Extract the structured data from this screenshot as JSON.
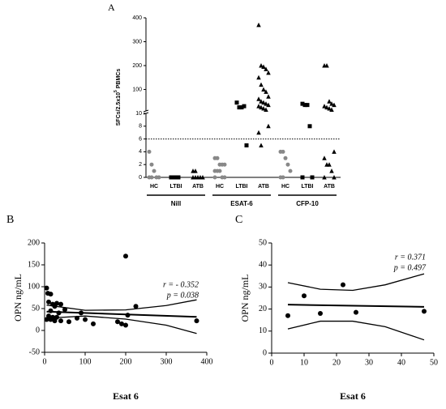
{
  "chart_data": [
    {
      "type": "dot",
      "panel": "A",
      "ylabel": "SFCs/2.5x10",
      "ylabel_sup": "5",
      "ylabel_end": " PBMCs",
      "ysegments": [
        [
          0,
          10
        ],
        [
          10,
          400
        ]
      ],
      "yticks": [
        0,
        2,
        4,
        6,
        8,
        10,
        100,
        200,
        300,
        400
      ],
      "refline": 6,
      "groups": [
        {
          "name": "Nill",
          "series": [
            {
              "name": "HC",
              "color": "#888888",
              "marker": "circle",
              "values": [
                4,
                2,
                1,
                0,
                0,
                0,
                0
              ]
            },
            {
              "name": "LTBI",
              "color": "#000000",
              "marker": "square",
              "values": [
                0,
                0,
                0,
                0
              ]
            },
            {
              "name": "ATB",
              "color": "#000000",
              "marker": "triangle",
              "values": [
                1,
                1,
                0,
                0,
                0,
                0,
                0
              ]
            }
          ]
        },
        {
          "name": "ESAT-6",
          "series": [
            {
              "name": "HC",
              "color": "#888888",
              "marker": "circle",
              "values": [
                3,
                3,
                2,
                2,
                2,
                1,
                1,
                1,
                0,
                0,
                0
              ]
            },
            {
              "name": "LTBI",
              "color": "#000000",
              "marker": "square",
              "values": [
                45,
                25,
                25,
                30,
                5
              ]
            },
            {
              "name": "ATB",
              "color": "#000000",
              "marker": "triangle",
              "values": [
                370,
                200,
                195,
                185,
                170,
                150,
                120,
                100,
                90,
                70,
                60,
                50,
                45,
                40,
                35,
                30,
                25,
                20,
                15,
                8,
                7,
                5
              ]
            }
          ]
        },
        {
          "name": "CFP-10",
          "series": [
            {
              "name": "HC",
              "color": "#888888",
              "marker": "circle",
              "values": [
                4,
                4,
                3,
                2,
                1,
                0,
                0
              ]
            },
            {
              "name": "LTBI",
              "color": "#000000",
              "marker": "square",
              "values": [
                40,
                35,
                35,
                8,
                0,
                0
              ]
            },
            {
              "name": "ATB",
              "color": "#000000",
              "marker": "triangle",
              "values": [
                200,
                200,
                50,
                40,
                35,
                30,
                25,
                20,
                15,
                4,
                3,
                2,
                2,
                1,
                0,
                0
              ]
            }
          ]
        }
      ]
    },
    {
      "type": "scatter",
      "panel": "B",
      "xlabel": "Esat 6",
      "ylabel": "OPN ng/mL",
      "xlim": [
        0,
        400
      ],
      "ylim": [
        -50,
        200
      ],
      "xticks": [
        0,
        100,
        200,
        300,
        400
      ],
      "yticks": [
        -50,
        0,
        50,
        100,
        150,
        200
      ],
      "color": "#000000",
      "x": [
        5,
        8,
        15,
        10,
        20,
        30,
        40,
        25,
        15,
        50,
        35,
        10,
        20,
        30,
        5,
        15,
        25,
        40,
        60,
        80,
        100,
        90,
        120,
        180,
        190,
        200,
        205,
        200,
        225,
        375
      ],
      "y": [
        97,
        85,
        83,
        65,
        60,
        62,
        60,
        55,
        45,
        48,
        40,
        33,
        30,
        30,
        25,
        25,
        22,
        22,
        20,
        28,
        25,
        40,
        15,
        20,
        15,
        12,
        35,
        170,
        55,
        22
      ],
      "fit": {
        "x": [
          5,
          375
        ],
        "y": [
          43,
          31
        ]
      },
      "upper": {
        "x": [
          5,
          100,
          200,
          300,
          375
        ],
        "y": [
          58,
          46,
          47,
          57,
          70
        ]
      },
      "lower": {
        "x": [
          5,
          100,
          200,
          300,
          375
        ],
        "y": [
          28,
          33,
          26,
          12,
          -7
        ]
      },
      "annotations": [
        "r = - 0.352",
        "p = 0.038"
      ]
    },
    {
      "type": "scatter",
      "panel": "C",
      "xlabel": "Esat 6",
      "ylabel": "OPN ng/mL",
      "xlim": [
        0,
        50
      ],
      "ylim": [
        0,
        50
      ],
      "xticks": [
        0,
        10,
        20,
        30,
        40,
        50
      ],
      "yticks": [
        0,
        10,
        20,
        30,
        40,
        50
      ],
      "color": "#000000",
      "x": [
        5,
        10,
        15,
        22,
        26,
        47
      ],
      "y": [
        17,
        26,
        18,
        31,
        18.5,
        19
      ],
      "fit": {
        "x": [
          5,
          47
        ],
        "y": [
          22,
          21
        ]
      },
      "upper": {
        "x": [
          5,
          15,
          25,
          35,
          47
        ],
        "y": [
          32,
          29,
          28.5,
          31,
          36
        ]
      },
      "lower": {
        "x": [
          5,
          15,
          25,
          35,
          47
        ],
        "y": [
          11,
          14.5,
          14.5,
          12,
          6
        ]
      },
      "annotations": [
        "r = 0.371",
        "p = 0.497"
      ]
    }
  ]
}
